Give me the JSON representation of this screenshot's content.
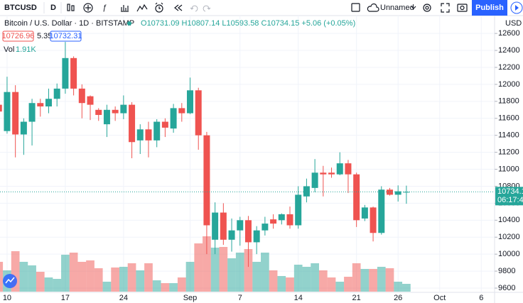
{
  "toolbar": {
    "symbol": "BTCUSD",
    "interval": "D",
    "layout_name": "Unnamed",
    "publish": "Publish"
  },
  "quote": {
    "bid": "10726.96",
    "spread": "5.35",
    "ask": "10732.31",
    "change": "+5.06 (+0.05%)",
    "countdown": "06:17:45"
  },
  "chart_data": {
    "type": "candlestick",
    "title": "Bitcoin / U.S. Dollar · 1D · BITSTAMP",
    "ohlc_labels": [
      "O",
      "H",
      "L",
      "C"
    ],
    "volume_name": "Vol",
    "volume_label": "1.91K",
    "currency": "USD",
    "up_color": "#26a69a",
    "down_color": "#ef5350",
    "open": [
      11760,
      11450,
      11910,
      11410,
      11560,
      11780,
      11740,
      11830,
      11950,
      12310,
      11950,
      11860,
      11700,
      11530,
      11700,
      11660,
      11760,
      11340,
      11470,
      11340,
      11560,
      11480,
      11720,
      11660,
      11930,
      11400,
      10170,
      10490,
      10170,
      10280,
      10400,
      10140,
      10280,
      10410,
      10400,
      10470,
      10340,
      10680,
      10780,
      10960,
      10960,
      10940,
      11070,
      10940,
      10420,
      10550,
      10250,
      10760,
      10700,
      10731.09
    ],
    "high": [
      11830,
      12090,
      11990,
      11600,
      11830,
      11830,
      11950,
      12010,
      12500,
      12330,
      12000,
      11870,
      11720,
      11760,
      11740,
      11870,
      11790,
      11530,
      11560,
      11590,
      11600,
      11770,
      11780,
      12080,
      11960,
      11440,
      10610,
      10600,
      10420,
      10440,
      10450,
      10330,
      10440,
      10470,
      10480,
      10560,
      10800,
      10890,
      11120,
      11040,
      11020,
      11200,
      11110,
      10960,
      10580,
      10560,
      10800,
      10780,
      10810,
      10807.14
    ],
    "low": [
      11600,
      11420,
      11140,
      11170,
      11280,
      11620,
      11660,
      11740,
      11890,
      11870,
      11600,
      11580,
      11570,
      11380,
      11570,
      11590,
      11130,
      11180,
      11140,
      11260,
      11380,
      11430,
      11560,
      11650,
      11230,
      10000,
      10000,
      10110,
      10030,
      10100,
      9850,
      10000,
      10220,
      10300,
      10350,
      10300,
      10300,
      10610,
      10730,
      10680,
      10900,
      10930,
      10720,
      10320,
      10390,
      10150,
      10230,
      10690,
      10620,
      10593.58
    ],
    "close": [
      11680,
      11910,
      11410,
      11560,
      11780,
      11740,
      11830,
      11950,
      12310,
      11950,
      11780,
      11760,
      11640,
      11700,
      11660,
      11760,
      11320,
      11470,
      11340,
      11560,
      11490,
      11720,
      11660,
      11930,
      11400,
      10340,
      10490,
      10170,
      10280,
      10400,
      10140,
      10280,
      10360,
      10360,
      10470,
      10340,
      10700,
      10800,
      10960,
      10940,
      10940,
      11070,
      10940,
      10400,
      10550,
      10250,
      10760,
      10700,
      10740,
      10734.15
    ],
    "volume": [
      7310,
      5220,
      9920,
      7310,
      6440,
      4870,
      3480,
      3130,
      9050,
      9570,
      7310,
      7660,
      5740,
      2440,
      5920,
      6090,
      6960,
      5220,
      6960,
      2780,
      2090,
      2090,
      3480,
      7310,
      11830,
      13570,
      10790,
      10960,
      8180,
      9570,
      10440,
      7310,
      9570,
      5220,
      3830,
      3480,
      6610,
      6090,
      6960,
      5220,
      3480,
      2440,
      3650,
      6960,
      5570,
      5570,
      6090,
      5740,
      2440,
      1910
    ],
    "xlim": [
      0.15,
      59.6
    ],
    "xticks": [
      {
        "value": 1,
        "label": "10"
      },
      {
        "value": 8,
        "label": "17"
      },
      {
        "value": 15,
        "label": "24"
      },
      {
        "value": 23,
        "label": "Sep"
      },
      {
        "value": 29,
        "label": "7"
      },
      {
        "value": 36,
        "label": "14"
      },
      {
        "value": 43,
        "label": "21"
      },
      {
        "value": 48,
        "label": "26"
      },
      {
        "value": 53,
        "label": "Oct"
      },
      {
        "value": 58,
        "label": "6"
      }
    ],
    "ylim": [
      9550,
      12810
    ],
    "yticks": [
      9600,
      9800,
      10000,
      10200,
      10400,
      10600,
      10800,
      11000,
      11200,
      11400,
      11600,
      11800,
      12000,
      12200,
      12400,
      12600
    ],
    "grid": true
  }
}
